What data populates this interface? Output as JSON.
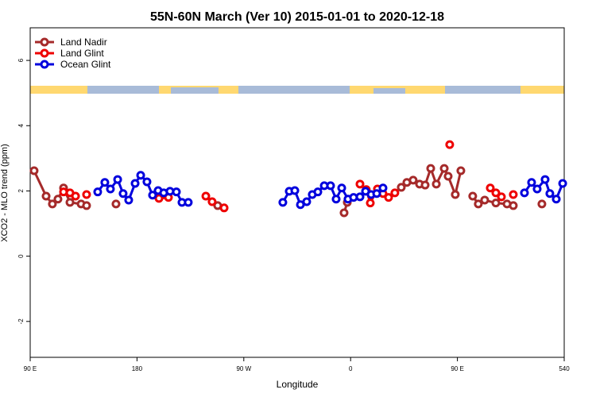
{
  "chart_data": {
    "type": "line",
    "title": "55N-60N March (Ver 10)   2015-01-01 to 2020-12-18",
    "x_label": "Longitude",
    "y_label": "XCO2 - MLO trend (ppm)",
    "xlim": [
      90,
      540
    ],
    "ylim": [
      -3.1,
      7
    ],
    "xticks": [
      {
        "value": 90,
        "label": "90 E"
      },
      180,
      {
        "value": 270,
        "label": "90 W"
      },
      {
        "value": 360,
        "label": "0"
      },
      {
        "value": 450,
        "label": "90 E"
      },
      540
    ],
    "yticks": [
      -2,
      0,
      2,
      4,
      6
    ],
    "legend": "top-left",
    "series": [
      {
        "name": "Land Nadir",
        "color": "#a52a2a",
        "x": [
          93.3,
          103.4,
          108.7,
          113.4,
          118.1,
          123.5,
          132.9,
          137.5,
          null,
          162.3,
          null,
          248.0,
          null,
          354.5,
          357.2,
          null,
          402.7,
          407.4,
          412.7,
          418.1,
          422.8,
          427.5,
          432.2,
          438.9,
          442.2,
          448.2,
          452.9,
          null,
          462.9,
          467.6,
          473.0,
          482.4,
          491.8,
          497.1,
          null,
          521.2
        ],
        "values": [
          2.62,
          1.84,
          1.6,
          1.75,
          2.09,
          1.65,
          1.6,
          1.55,
          null,
          1.6,
          null,
          1.55,
          null,
          1.33,
          1.65,
          null,
          2.11,
          2.26,
          2.33,
          2.21,
          2.18,
          2.69,
          2.21,
          2.69,
          2.45,
          1.89,
          2.62,
          null,
          1.84,
          1.6,
          1.72,
          1.63,
          1.6,
          1.55,
          null,
          1.6
        ]
      },
      {
        "name": "Land Glint",
        "color": "#ee0000",
        "x": [
          118.1,
          123.5,
          128.2,
          null,
          137.5,
          null,
          198.5,
          206.5,
          null,
          238.0,
          243.3,
          null,
          253.4,
          null,
          367.9,
          373.2,
          376.6,
          382.6,
          387.3,
          392.0,
          397.3,
          null,
          443.5,
          null,
          477.7,
          482.4,
          487.1,
          null,
          497.1
        ],
        "values": [
          1.97,
          1.94,
          1.84,
          null,
          1.89,
          null,
          1.77,
          1.8,
          null,
          1.84,
          1.67,
          null,
          1.48,
          null,
          2.21,
          2.04,
          1.63,
          2.06,
          1.92,
          1.8,
          1.94,
          null,
          3.42,
          null,
          2.09,
          1.94,
          1.82,
          null,
          1.89
        ]
      },
      {
        "name": "Ocean Glint",
        "color": "#0000dd",
        "x": [
          146.9,
          152.9,
          157.6,
          163.7,
          168.3,
          173.0,
          178.4,
          183.1,
          188.4,
          193.1,
          197.8,
          202.5,
          207.8,
          213.2,
          217.9,
          223.2,
          null,
          302.9,
          308.3,
          313.0,
          317.7,
          323.0,
          327.7,
          332.4,
          337.8,
          343.1,
          347.8,
          352.5,
          357.8,
          362.5,
          367.9,
          372.6,
          377.3,
          382.0,
          387.3,
          null,
          506.5,
          512.5,
          517.2,
          523.9,
          527.9,
          533.3,
          538.7
        ],
        "values": [
          1.97,
          2.26,
          2.06,
          2.35,
          1.92,
          1.72,
          2.23,
          2.48,
          2.28,
          1.87,
          2.01,
          1.94,
          1.99,
          1.97,
          1.65,
          1.65,
          null,
          1.65,
          1.99,
          2.01,
          1.58,
          1.67,
          1.89,
          1.97,
          2.16,
          2.16,
          1.75,
          2.09,
          1.75,
          1.8,
          1.82,
          1.99,
          1.89,
          1.92,
          2.09,
          null,
          1.94,
          2.26,
          2.06,
          2.35,
          1.92,
          1.75,
          2.23
        ]
      }
    ]
  }
}
